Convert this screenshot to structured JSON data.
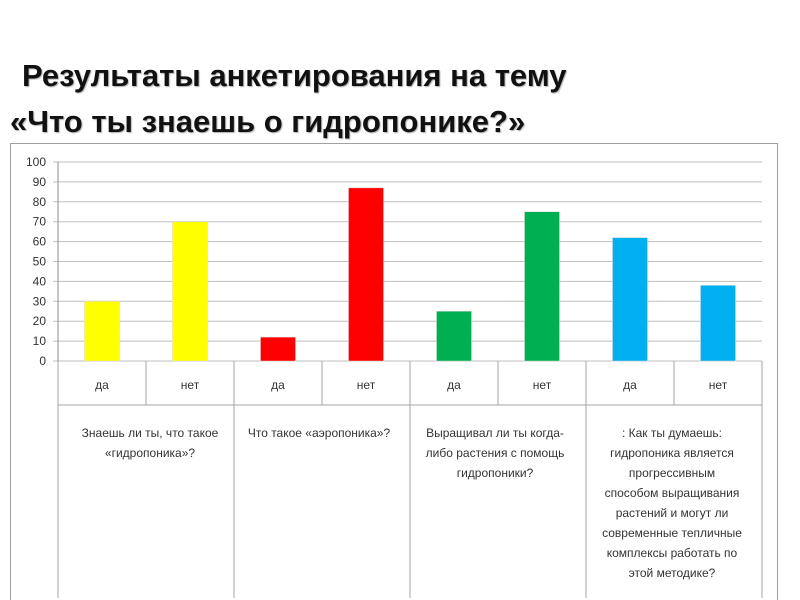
{
  "title": {
    "line1": "Результаты анкетирования на тему",
    "line2": "«Что ты знаешь о гидропонике?»"
  },
  "chart_data": {
    "type": "bar",
    "ylim": [
      0,
      100
    ],
    "yticks": [
      0,
      10,
      20,
      30,
      40,
      50,
      60,
      70,
      80,
      90,
      100
    ],
    "grid": true,
    "categories": [
      "да",
      "нет",
      "да",
      "нет",
      "да",
      "нет",
      "да",
      "нет"
    ],
    "values": [
      30,
      70,
      12,
      87,
      25,
      75,
      62,
      38
    ],
    "colors": [
      "#ffff00",
      "#ffff00",
      "#ff0000",
      "#ff0000",
      "#00b050",
      "#00b050",
      "#00b0f0",
      "#00b0f0"
    ],
    "groups": [
      {
        "lines": [
          "Знаешь ли ты, что такое",
          "«гидропоника»?"
        ]
      },
      {
        "lines": [
          "Что такое «аэропоника»?"
        ]
      },
      {
        "lines": [
          "Выращивал ли ты когда-",
          "либо растения с помощь",
          "гидропоники?"
        ]
      },
      {
        "lines": [
          ": Как ты думаешь:",
          "гидропоника является",
          "прогрессивным",
          "способом выращивания",
          "растений и могут ли",
          "современные тепличные",
          "комплексы работать по",
          "этой методике?"
        ]
      }
    ]
  }
}
